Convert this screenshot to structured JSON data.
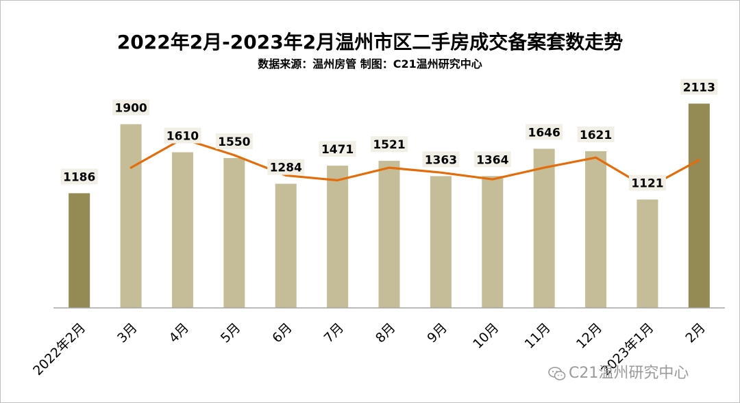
{
  "title": "2022年2月-2023年2月温州市区二手房成交备案套数走势",
  "subtitle": "数据来源：温州房管  制图：C21温州研究中心",
  "watermark": "C21温州研究中心",
  "colors": {
    "bar_highlight": "#948a54",
    "bar_normal": "#c4bd97",
    "line": "#e46c0a",
    "label_bg": "#f2f0e6",
    "axis": "#a6a6a6"
  },
  "chart_data": {
    "type": "bar",
    "title": "2022年2月-2023年2月温州市区二手房成交备案套数走势",
    "categories": [
      "2022年2月",
      "3月",
      "4月",
      "5月",
      "6月",
      "7月",
      "8月",
      "9月",
      "10月",
      "11月",
      "12月",
      "2023年1月",
      "2月"
    ],
    "values": [
      1186,
      1900,
      1610,
      1550,
      1284,
      1471,
      1521,
      1363,
      1364,
      1646,
      1621,
      1121,
      2113
    ],
    "highlight": [
      true,
      false,
      false,
      false,
      false,
      false,
      false,
      false,
      false,
      false,
      false,
      false,
      true
    ],
    "line_series": {
      "categories": [
        "3月",
        "4月",
        "5月",
        "6月",
        "7月",
        "8月",
        "9月",
        "10月",
        "11月",
        "12月",
        "2023年1月",
        "2月"
      ],
      "values": [
        1450,
        1750,
        1580,
        1370,
        1320,
        1450,
        1400,
        1330,
        1450,
        1555,
        1240,
        1530
      ]
    },
    "ylim": [
      0,
      2300
    ],
    "xlabel": "",
    "ylabel": "",
    "grid": false,
    "legend": "none"
  }
}
